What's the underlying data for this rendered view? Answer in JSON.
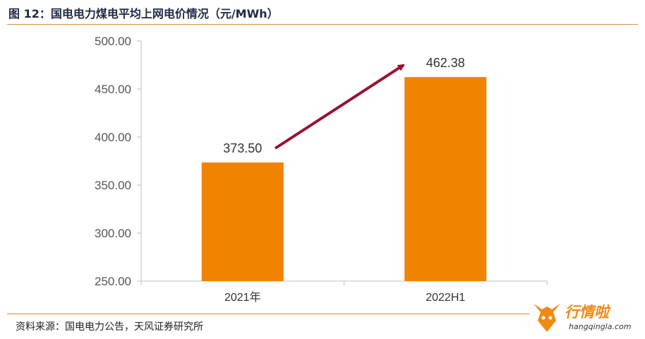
{
  "header": {
    "title": "图 12：国电电力煤电平均上网电价情况（元/MWh）"
  },
  "footer": {
    "source": "资料来源：国电电力公告，天风证券研究所"
  },
  "logo": {
    "name": "行情啦",
    "url": "hangqingla.com",
    "icon": "bull-head-icon"
  },
  "colors": {
    "bar": "#f08300",
    "arrow": "#9b1030",
    "rule": "#e08a3a"
  },
  "chart_data": {
    "type": "bar",
    "title": "图 12：国电电力煤电平均上网电价情况（元/MWh）",
    "categories": [
      "2021年",
      "2022H1"
    ],
    "values": [
      373.5,
      462.38
    ],
    "value_labels": [
      "373.50",
      "462.38"
    ],
    "ylim": [
      250,
      500
    ],
    "yticks": [
      250,
      300,
      350,
      400,
      450,
      500
    ],
    "ytick_labels": [
      "250.00",
      "300.00",
      "350.00",
      "400.00",
      "450.00",
      "500.00"
    ],
    "xlabel": "",
    "ylabel": "",
    "grid": false,
    "legend": "none",
    "annotation": "arrow from 2021年 to 2022H1 indicating increase"
  }
}
